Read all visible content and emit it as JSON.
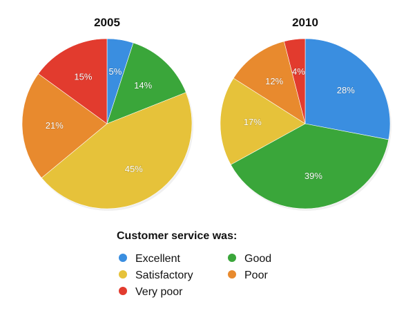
{
  "chart_data": [
    {
      "type": "pie",
      "title": "2005",
      "categories": [
        "Excellent",
        "Good",
        "Satisfactory",
        "Poor",
        "Very poor"
      ],
      "values": [
        5,
        14,
        45,
        21,
        15
      ],
      "labels": [
        "5%",
        "14%",
        "45%",
        "21%",
        "15%"
      ],
      "colors": [
        "#3a8ee0",
        "#3aa63a",
        "#e6c23a",
        "#e88a2e",
        "#e23b2e"
      ],
      "start_angle_deg": 0,
      "direction": "clockwise"
    },
    {
      "type": "pie",
      "title": "2010",
      "categories": [
        "Excellent",
        "Good",
        "Satisfactory",
        "Poor",
        "Very poor"
      ],
      "values": [
        28,
        39,
        17,
        12,
        4
      ],
      "labels": [
        "28%",
        "39%",
        "17%",
        "12%",
        "4%"
      ],
      "colors": [
        "#3a8ee0",
        "#3aa63a",
        "#e6c23a",
        "#e88a2e",
        "#e23b2e"
      ],
      "start_angle_deg": 0,
      "direction": "clockwise"
    }
  ],
  "legend": {
    "title": "Customer service was:",
    "placement": "bottom-center",
    "items": [
      {
        "label": "Excellent",
        "color": "#3a8ee0"
      },
      {
        "label": "Good",
        "color": "#3aa63a"
      },
      {
        "label": "Satisfactory",
        "color": "#e6c23a"
      },
      {
        "label": "Poor",
        "color": "#e88a2e"
      },
      {
        "label": "Very poor",
        "color": "#e23b2e"
      }
    ]
  }
}
